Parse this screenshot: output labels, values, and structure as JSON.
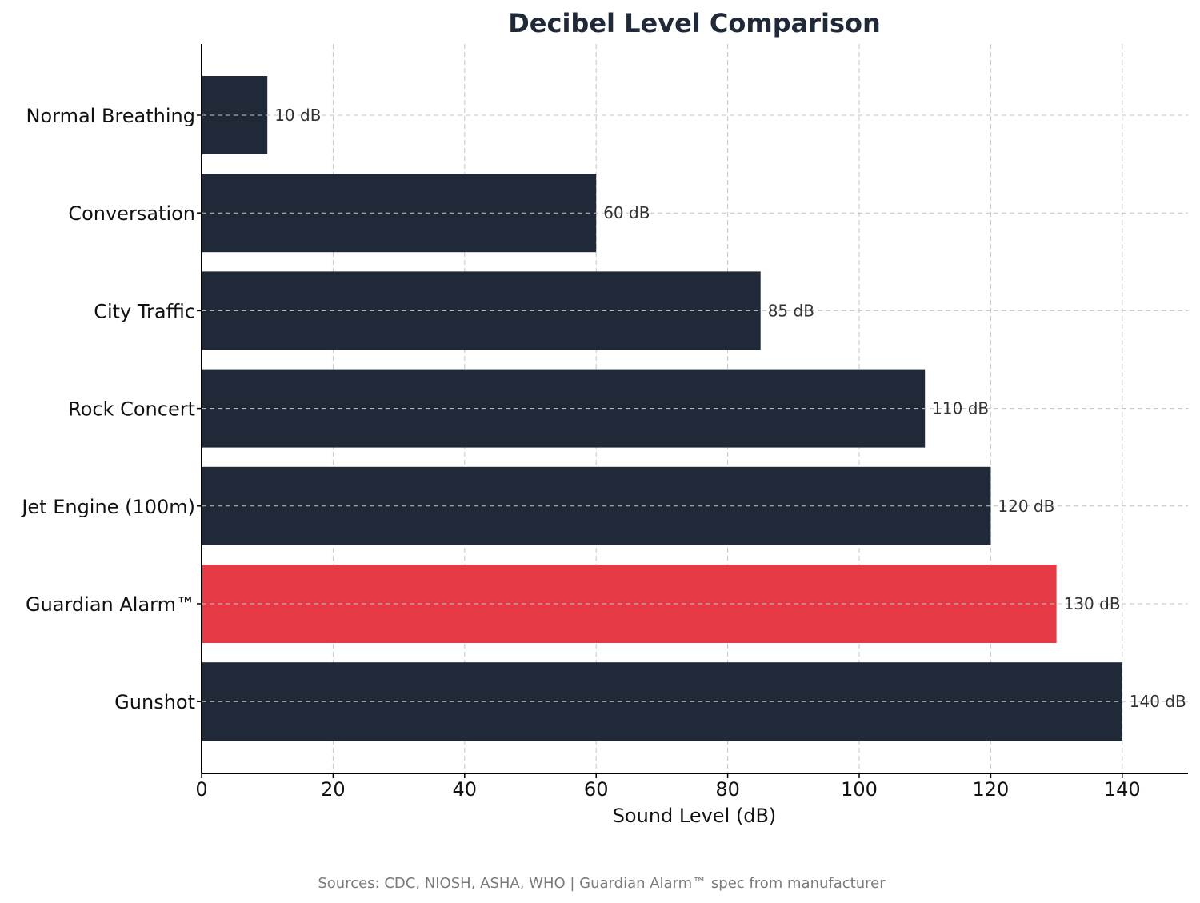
{
  "chart_data": {
    "type": "bar",
    "orientation": "horizontal",
    "title": "Decibel Level Comparison",
    "xlabel": "Sound Level (dB)",
    "ylabel": "",
    "xlim": [
      0,
      150
    ],
    "x_ticks": [
      0,
      20,
      40,
      60,
      80,
      100,
      120,
      140
    ],
    "grid": true,
    "categories": [
      "Normal Breathing",
      "Conversation",
      "City Traffic",
      "Rock Concert",
      "Jet Engine (100m)",
      "Guardian Alarm™",
      "Gunshot"
    ],
    "values": [
      10,
      60,
      85,
      110,
      120,
      130,
      140
    ],
    "data_labels": [
      "10 dB",
      "60 dB",
      "85 dB",
      "110 dB",
      "120 dB",
      "130 dB",
      "140 dB"
    ],
    "highlight_index": 5,
    "colors": {
      "bar": "#1f2937",
      "highlight": "#e63946",
      "title": "#1f2937",
      "footnote": "#7a7a7a",
      "grid": "#c4c4c4"
    },
    "footnote": "Sources: CDC, NIOSH, ASHA, WHO | Guardian Alarm™ spec from manufacturer"
  }
}
